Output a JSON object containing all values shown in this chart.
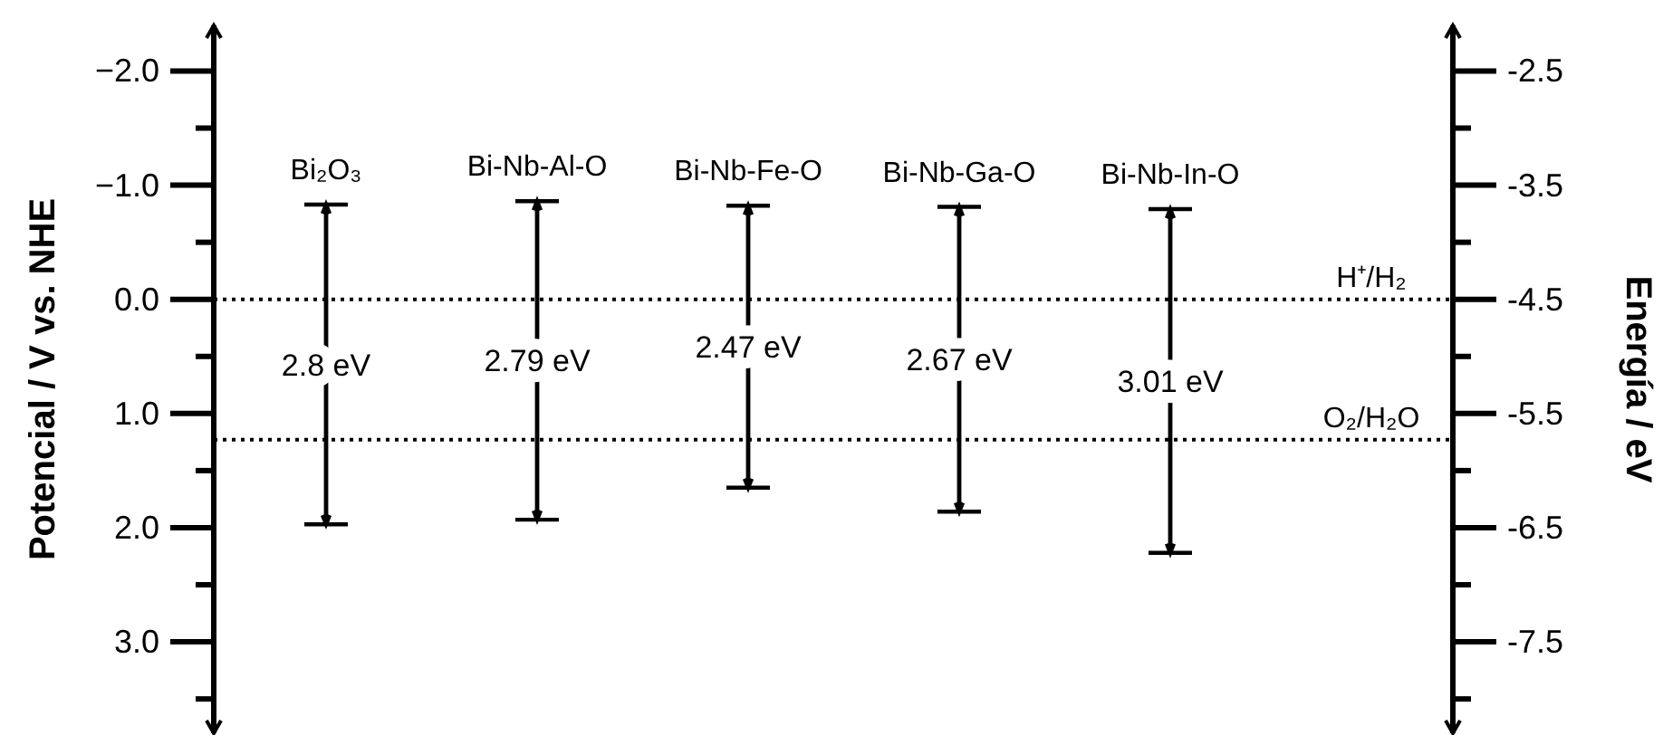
{
  "chart_data": {
    "type": "bar",
    "categories": [
      "Bi₂O₃",
      "Bi-Nb-Al-O",
      "Bi-Nb-Fe-O",
      "Bi-Nb-Ga-O",
      "Bi-Nb-In-O"
    ],
    "base": [
      -0.83,
      -0.86,
      -0.82,
      -0.81,
      -0.79
    ],
    "values": [
      2.8,
      2.79,
      2.47,
      2.67,
      3.01
    ],
    "value_labels": [
      "2.8 eV",
      "2.79 eV",
      "2.47 eV",
      "2.67 eV",
      "3.01 eV"
    ],
    "color": "#000000",
    "ylabel": "Potencial / V vs. NHE",
    "y2label": "Energía / eV",
    "ylim": [
      3.8,
      -2.4
    ],
    "yticks": [
      {
        "value": -2,
        "label": "−2.0"
      },
      {
        "value": -1.5,
        "label": null
      },
      {
        "value": -1,
        "label": "−1.0"
      },
      {
        "value": -0.5,
        "label": null
      },
      {
        "value": 0,
        "label": "0.0"
      },
      {
        "value": 0.5,
        "label": null
      },
      {
        "value": 1,
        "label": "1.0"
      },
      {
        "value": 1.5,
        "label": null
      },
      {
        "value": 2,
        "label": "2.0"
      },
      {
        "value": 2.5,
        "label": null
      },
      {
        "value": 3,
        "label": "3.0"
      },
      {
        "value": 3.5,
        "label": null
      }
    ],
    "y2lim": [
      -8.3,
      -2.1
    ],
    "y2ticks": [
      -2.5,
      {
        "value": -3,
        "label": null
      },
      -3.5,
      {
        "value": -4,
        "label": null
      },
      -4.5,
      {
        "value": -5,
        "label": null
      },
      -5.5,
      {
        "value": -6,
        "label": null
      },
      -6.5,
      {
        "value": -7,
        "label": null
      },
      -7.5,
      {
        "value": -8,
        "label": null
      }
    ],
    "ref_lines": [
      {
        "axis": "y",
        "value": 0,
        "label": "H⁺/H₂",
        "line_style": "dotted"
      },
      {
        "axis": "y",
        "value": 1.23,
        "label": "O₂/H₂O",
        "line_style": "dotted"
      }
    ],
    "grid": false
  }
}
